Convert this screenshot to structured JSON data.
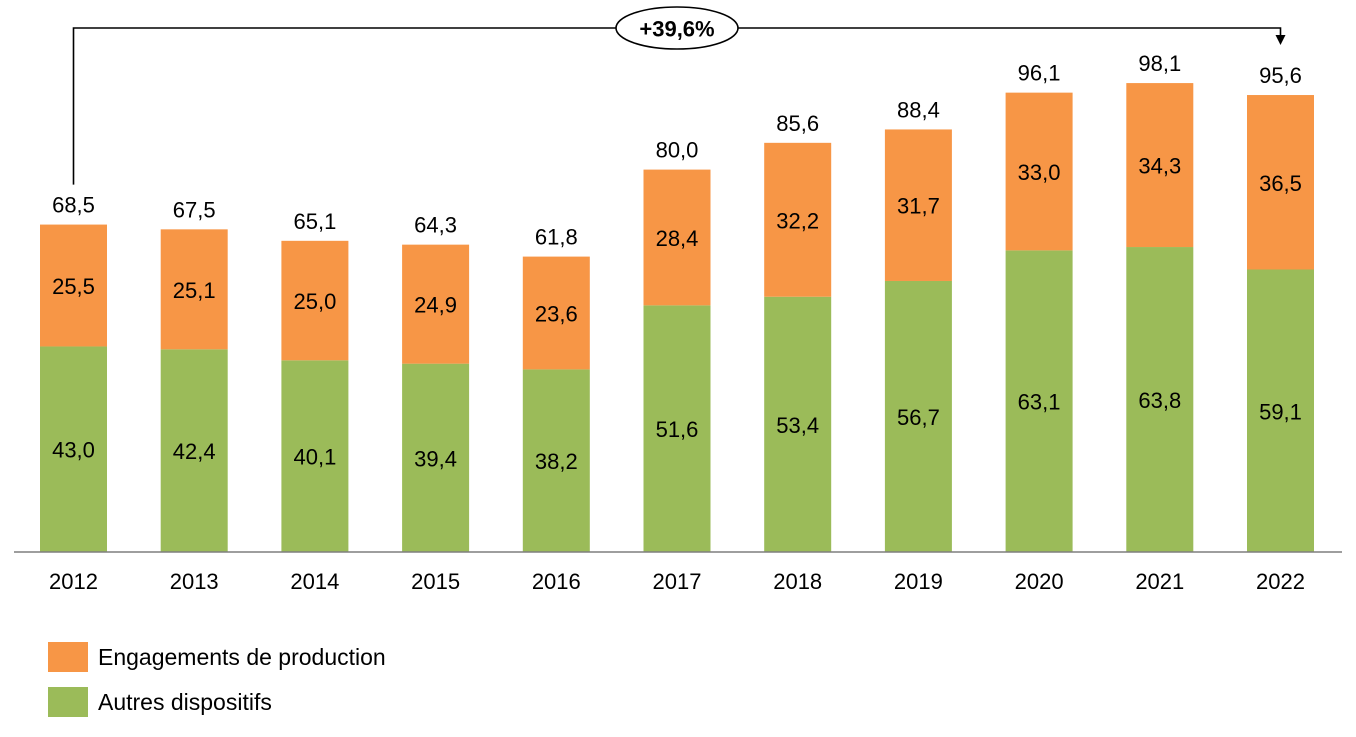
{
  "chart_data": {
    "type": "bar",
    "stacked": true,
    "categories": [
      "2012",
      "2013",
      "2014",
      "2015",
      "2016",
      "2017",
      "2018",
      "2019",
      "2020",
      "2021",
      "2022"
    ],
    "series": [
      {
        "name": "Autres dispositifs",
        "color": "#9BBB59",
        "values": [
          43.0,
          42.4,
          40.1,
          39.4,
          38.2,
          51.6,
          53.4,
          56.7,
          63.1,
          63.8,
          59.1
        ],
        "labels": [
          "43,0",
          "42,4",
          "40,1",
          "39,4",
          "38,2",
          "51,6",
          "53,4",
          "56,7",
          "63,1",
          "63,8",
          "59,1"
        ]
      },
      {
        "name": "Engagements de production",
        "color": "#F79646",
        "values": [
          25.5,
          25.1,
          25.0,
          24.9,
          23.6,
          28.4,
          32.2,
          31.7,
          33.0,
          34.3,
          36.5
        ],
        "labels": [
          "25,5",
          "25,1",
          "25,0",
          "24,9",
          "23,6",
          "28,4",
          "32,2",
          "31,7",
          "33,0",
          "34,3",
          "36,5"
        ]
      }
    ],
    "totals": [
      68.5,
      67.5,
      65.1,
      64.3,
      61.8,
      80.0,
      85.6,
      88.4,
      96.1,
      98.1,
      95.6
    ],
    "total_labels": [
      "68,5",
      "67,5",
      "65,1",
      "64,3",
      "61,8",
      "80,0",
      "85,6",
      "88,4",
      "96,1",
      "98,1",
      "95,6"
    ],
    "ylim": [
      0,
      100
    ],
    "grid": false,
    "legend_position": "bottom-left",
    "annotation": {
      "text": "+39,6%",
      "from": "2012",
      "to": "2022"
    }
  },
  "legend": [
    {
      "label": "Engagements de production",
      "color": "#F79646"
    },
    {
      "label": "Autres dispositifs",
      "color": "#9BBB59"
    }
  ]
}
